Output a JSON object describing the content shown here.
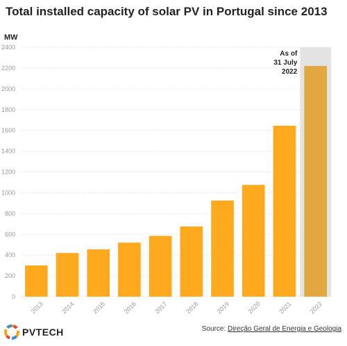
{
  "title": "Total installed capacity of solar PV in Portugal since 2013",
  "chart_data": {
    "type": "bar",
    "title": "Total installed capacity of solar PV in Portugal since 2013",
    "ylabel": "MW",
    "xlabel": "",
    "ylim": [
      0,
      2400
    ],
    "yticks": [
      0,
      200,
      400,
      600,
      800,
      1000,
      1200,
      1400,
      1600,
      1800,
      2000,
      2200,
      2400
    ],
    "grid": true,
    "categories": [
      "2013",
      "2014",
      "2015",
      "2016",
      "2017",
      "2018",
      "2019",
      "2020",
      "2021",
      "2022"
    ],
    "values": [
      300,
      420,
      455,
      520,
      585,
      675,
      925,
      1075,
      1645,
      2220
    ],
    "colors": {
      "bar": "#FFA91E",
      "highlight_bar": "#E3A940",
      "highlight_band": "#E3E3E3",
      "grid": "#E6E6E6"
    },
    "highlight_index": 9,
    "annotation": {
      "lines": [
        "As of",
        "31 July",
        "2022"
      ],
      "category": "2022"
    }
  },
  "footer": {
    "logo_text": "PVTECH",
    "source_prefix": "Source: ",
    "source_link": "Direção Geral de Energia e Geologia"
  }
}
